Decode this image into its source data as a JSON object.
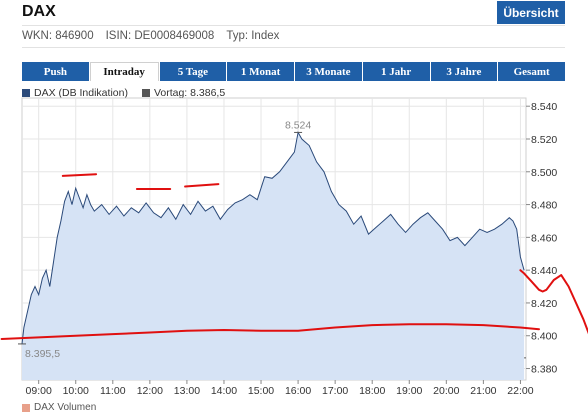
{
  "header": {
    "title": "DAX",
    "overview_label": "Übersicht",
    "wkn": "WKN: 846900",
    "isin": "ISIN: DE0008469008",
    "type": "Typ: Index"
  },
  "tabs": [
    {
      "label": "Push",
      "active": false
    },
    {
      "label": "Intraday",
      "active": true
    },
    {
      "label": "5 Tage",
      "active": false
    },
    {
      "label": "1 Monat",
      "active": false
    },
    {
      "label": "3 Monate",
      "active": false
    },
    {
      "label": "1 Jahr",
      "active": false
    },
    {
      "label": "3 Jahre",
      "active": false
    },
    {
      "label": "Gesamt",
      "active": false
    }
  ],
  "legend": {
    "series_label": "DAX (DB Indikation)",
    "prev_label": "Vortag: 8.386,5",
    "series_color": "#2b4a7a",
    "prev_color": "#555555"
  },
  "footer": {
    "volume_label": "DAX Volumen"
  },
  "chart_data": {
    "type": "area",
    "x_tick_labels": [
      "09:00",
      "10:00",
      "11:00",
      "12:00",
      "13:00",
      "14:00",
      "15:00",
      "16:00",
      "17:00",
      "18:00",
      "19:00",
      "20:00",
      "21:00",
      "22:00"
    ],
    "y_tick_labels": [
      "8.380",
      "8.400",
      "8.420",
      "8.440",
      "8.460",
      "8.480",
      "8.500",
      "8.520",
      "8.540"
    ],
    "ylim": [
      8373,
      8545
    ],
    "xlim": [
      8.55,
      22.15
    ],
    "previous_close": 8386.5,
    "annotations": {
      "high_label": "8.524",
      "low_label": "8.395,5"
    },
    "grid": true,
    "series": [
      {
        "name": "DAX (DB Indikation)",
        "x": [
          8.55,
          8.6,
          8.7,
          8.8,
          8.9,
          9.0,
          9.1,
          9.2,
          9.3,
          9.4,
          9.5,
          9.6,
          9.7,
          9.8,
          9.9,
          10.0,
          10.1,
          10.2,
          10.3,
          10.4,
          10.5,
          10.7,
          10.9,
          11.1,
          11.3,
          11.5,
          11.7,
          11.9,
          12.1,
          12.3,
          12.5,
          12.7,
          12.9,
          13.1,
          13.3,
          13.5,
          13.7,
          13.9,
          14.1,
          14.3,
          14.5,
          14.7,
          14.9,
          15.1,
          15.3,
          15.5,
          15.7,
          15.9,
          16.0,
          16.1,
          16.3,
          16.5,
          16.7,
          16.9,
          17.1,
          17.3,
          17.5,
          17.7,
          17.9,
          18.1,
          18.3,
          18.5,
          18.7,
          18.9,
          19.1,
          19.3,
          19.5,
          19.7,
          19.9,
          20.1,
          20.3,
          20.5,
          20.7,
          20.9,
          21.1,
          21.3,
          21.5,
          21.7,
          21.8,
          21.9,
          22.0,
          22.1
        ],
        "values": [
          8395,
          8405,
          8415,
          8425,
          8430,
          8425,
          8435,
          8440,
          8430,
          8445,
          8460,
          8470,
          8482,
          8488,
          8480,
          8490,
          8484,
          8478,
          8486,
          8480,
          8476,
          8480,
          8474,
          8479,
          8473,
          8478,
          8475,
          8481,
          8475,
          8472,
          8478,
          8471,
          8480,
          8474,
          8482,
          8476,
          8479,
          8471,
          8477,
          8481,
          8483,
          8486,
          8483,
          8497,
          8496,
          8500,
          8506,
          8512,
          8524,
          8520,
          8516,
          8506,
          8500,
          8488,
          8480,
          8476,
          8468,
          8473,
          8462,
          8466,
          8470,
          8474,
          8468,
          8463,
          8468,
          8472,
          8475,
          8470,
          8465,
          8458,
          8460,
          8455,
          8460,
          8465,
          8463,
          8465,
          8468,
          8472,
          8470,
          8465,
          8448,
          8440
        ]
      }
    ]
  },
  "markup": {
    "upper_dashes": [
      {
        "x": [
          9.65,
          10.55
        ],
        "y": [
          8497.5,
          8498.5
        ]
      },
      {
        "x": [
          11.65,
          12.55
        ],
        "y": [
          8489.5,
          8489.5
        ]
      },
      {
        "x": [
          12.95,
          13.85
        ],
        "y": [
          8491,
          8492.5
        ]
      }
    ],
    "lower_curve": {
      "x": [
        8.0,
        9.0,
        10.0,
        11.0,
        12.0,
        13.0,
        14.0,
        15.0,
        16.0,
        17.0,
        18.0,
        19.0,
        20.0,
        21.0,
        22.0,
        22.5
      ],
      "y": [
        8398,
        8399,
        8400,
        8401,
        8402,
        8403,
        8403.5,
        8403,
        8403,
        8405,
        8406.5,
        8407,
        8407,
        8406.5,
        8405,
        8404
      ]
    },
    "right_curve": {
      "x": [
        22.0,
        22.1,
        22.3,
        22.5,
        22.6,
        22.7,
        22.9,
        23.1,
        23.3,
        23.5,
        23.7,
        23.9,
        24.2,
        24.4
      ],
      "y": [
        8440,
        8438,
        8433,
        8428,
        8427,
        8428,
        8434,
        8437,
        8430,
        8420,
        8410,
        8398,
        8385,
        8380
      ]
    }
  }
}
